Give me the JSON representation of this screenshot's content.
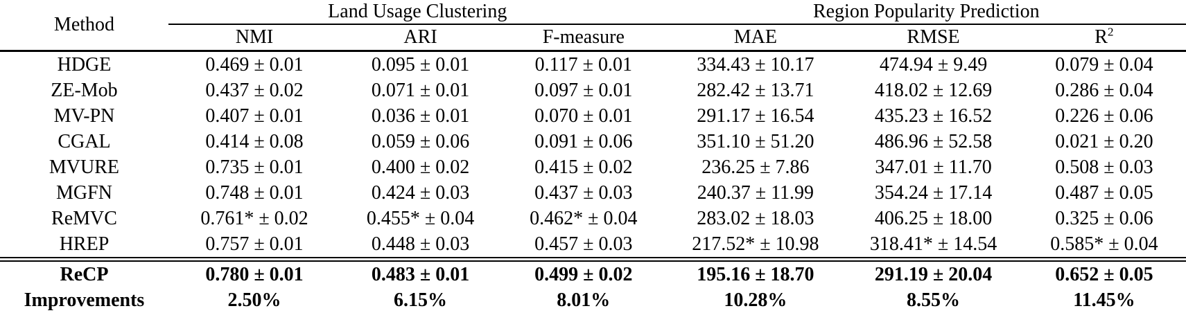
{
  "colors": {
    "text": "#000000",
    "background": "#ffffff"
  },
  "table": {
    "method_header": "Method",
    "groups": [
      {
        "label": "Land Usage Clustering",
        "columns": [
          "NMI",
          "ARI",
          "F-measure"
        ]
      },
      {
        "label": "Region Popularity Prediction",
        "columns": [
          "MAE",
          "RMSE",
          {
            "base": "R",
            "sup": "2"
          }
        ]
      }
    ],
    "rows": [
      {
        "method": "HDGE",
        "values": [
          "0.469 ± 0.01",
          "0.095 ± 0.01",
          "0.117 ± 0.01",
          "334.43 ± 10.17",
          "474.94 ± 9.49",
          "0.079 ± 0.04"
        ]
      },
      {
        "method": "ZE-Mob",
        "values": [
          "0.437 ± 0.02",
          "0.071 ± 0.01",
          "0.097 ± 0.01",
          "282.42 ± 13.71",
          "418.02 ± 12.69",
          "0.286 ± 0.04"
        ]
      },
      {
        "method": "MV-PN",
        "values": [
          "0.407 ± 0.01",
          "0.036 ± 0.01",
          "0.070 ± 0.01",
          "291.17 ± 16.54",
          "435.23 ± 16.52",
          "0.226 ± 0.06"
        ]
      },
      {
        "method": "CGAL",
        "values": [
          "0.414 ± 0.08",
          "0.059 ± 0.06",
          "0.091 ± 0.06",
          "351.10 ± 51.20",
          "486.96 ± 52.58",
          "0.021 ± 0.20"
        ]
      },
      {
        "method": "MVURE",
        "values": [
          "0.735 ± 0.01",
          "0.400 ± 0.02",
          "0.415 ± 0.02",
          "236.25 ± 7.86",
          "347.01 ± 11.70",
          "0.508 ± 0.03"
        ]
      },
      {
        "method": "MGFN",
        "values": [
          "0.748 ± 0.01",
          "0.424 ± 0.03",
          "0.437 ± 0.03",
          "240.37 ± 11.99",
          "354.24 ± 17.14",
          "0.487 ± 0.05"
        ]
      },
      {
        "method": "ReMVC",
        "values": [
          "0.761* ± 0.02",
          "0.455* ± 0.04",
          "0.462* ± 0.04",
          "283.02 ± 18.03",
          "406.25 ± 18.00",
          "0.325 ± 0.06"
        ]
      },
      {
        "method": "HREP",
        "values": [
          "0.757 ± 0.01",
          "0.448 ± 0.03",
          "0.457 ± 0.03",
          "217.52* ± 10.98",
          "318.41* ± 14.54",
          "0.585* ± 0.04"
        ]
      }
    ],
    "summary_rows": [
      {
        "method": "ReCP",
        "values": [
          "0.780 ± 0.01",
          "0.483 ± 0.01",
          "0.499 ± 0.02",
          "195.16 ± 18.70",
          "291.19 ± 20.04",
          "0.652 ± 0.05"
        ]
      },
      {
        "method": "Improvements",
        "values": [
          "2.50%",
          "6.15%",
          "8.01%",
          "10.28%",
          "8.55%",
          "11.45%"
        ]
      }
    ]
  }
}
